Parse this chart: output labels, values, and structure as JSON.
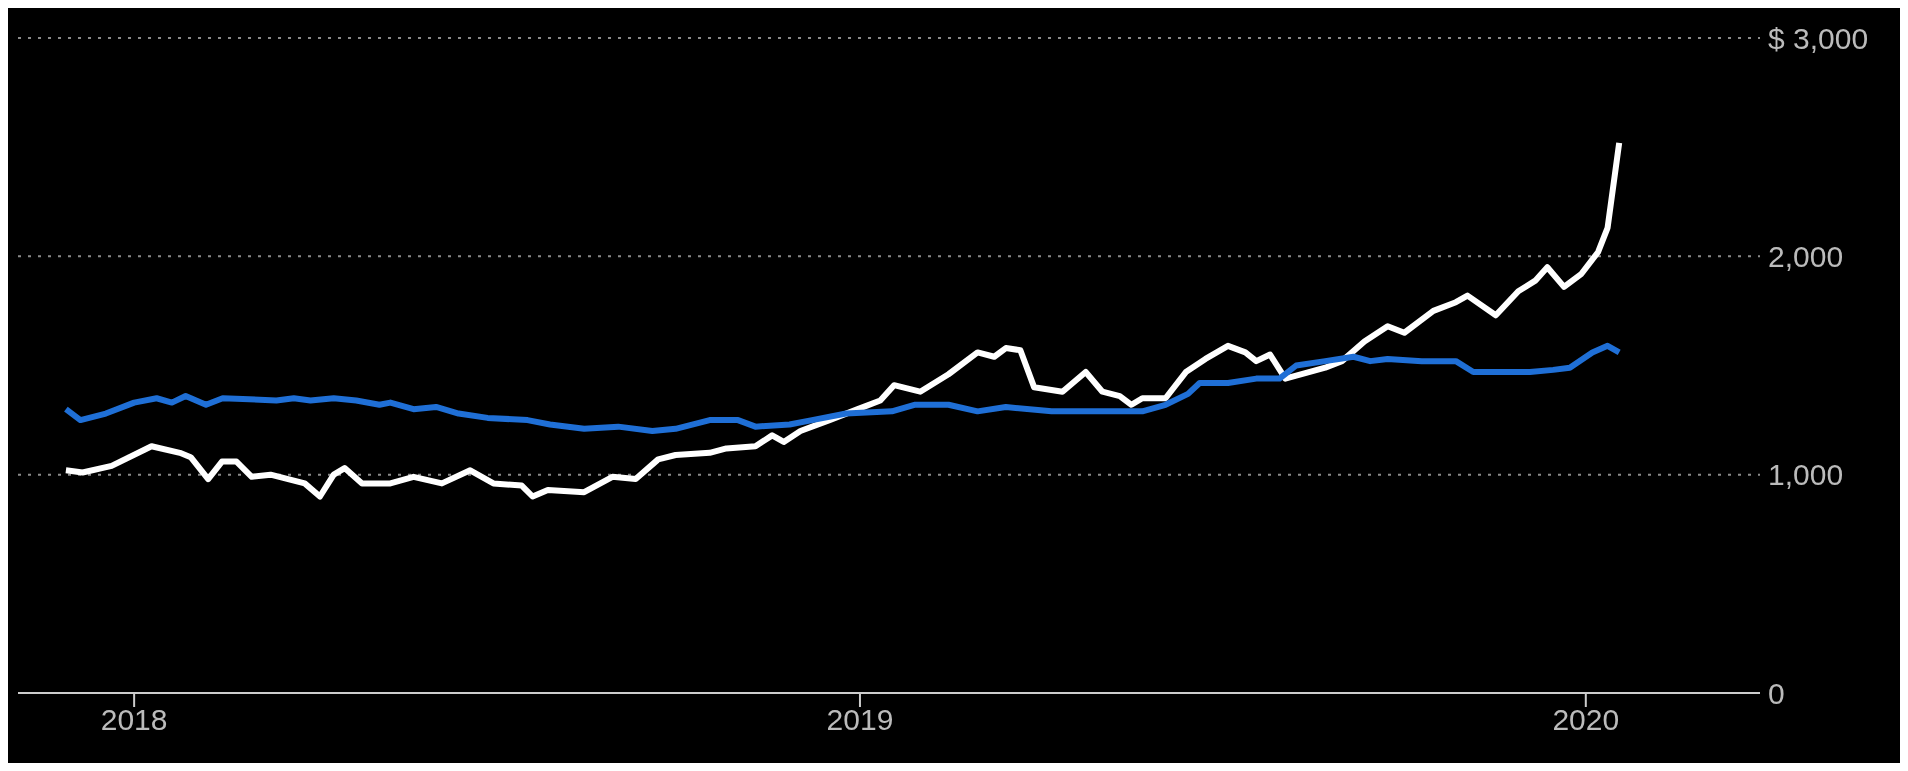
{
  "chart_data": {
    "type": "line",
    "series": [
      {
        "color": "#ffffff",
        "x": [
          2017.906,
          2017.929,
          2017.969,
          2018.024,
          2018.063,
          2018.078,
          2018.102,
          2018.121,
          2018.141,
          2018.162,
          2018.188,
          2018.235,
          2018.256,
          2018.275,
          2018.29,
          2018.314,
          2018.353,
          2018.385,
          2018.424,
          2018.463,
          2018.495,
          2018.534,
          2018.549,
          2018.57,
          2018.62,
          2018.659,
          2018.691,
          2018.722,
          2018.746,
          2018.793,
          2018.816,
          2018.856,
          2018.879,
          2018.895,
          2018.918,
          2018.958,
          2018.997,
          2019.028,
          2019.047,
          2019.083,
          2019.122,
          2019.162,
          2019.185,
          2019.201,
          2019.221,
          2019.24,
          2019.279,
          2019.311,
          2019.334,
          2019.358,
          2019.374,
          2019.389,
          2019.421,
          2019.449,
          2019.476,
          2019.507,
          2019.531,
          2019.546,
          2019.565,
          2019.586,
          2019.641,
          2019.664,
          2019.695,
          2019.727,
          2019.75,
          2019.79,
          2019.821,
          2019.837,
          2019.876,
          2019.907,
          2019.931,
          2019.947,
          2019.97,
          2019.994,
          2020.017,
          2020.03,
          2020.046
        ],
        "values": [
          1020,
          1010,
          1040,
          1130,
          1100,
          1080,
          980,
          1060,
          1060,
          990,
          1000,
          960,
          900,
          1000,
          1030,
          960,
          960,
          990,
          960,
          1020,
          960,
          950,
          900,
          930,
          920,
          990,
          980,
          1070,
          1090,
          1100,
          1120,
          1130,
          1180,
          1150,
          1200,
          1250,
          1300,
          1340,
          1410,
          1380,
          1460,
          1560,
          1540,
          1580,
          1570,
          1400,
          1380,
          1470,
          1380,
          1360,
          1320,
          1350,
          1350,
          1470,
          1530,
          1590,
          1560,
          1520,
          1550,
          1440,
          1490,
          1520,
          1610,
          1680,
          1650,
          1750,
          1790,
          1820,
          1730,
          1840,
          1890,
          1950,
          1860,
          1920,
          2020,
          2130,
          2520
        ]
      },
      {
        "color": "#1f6fd6",
        "x": [
          2017.906,
          2017.926,
          2017.961,
          2018.0,
          2018.031,
          2018.052,
          2018.071,
          2018.099,
          2018.122,
          2018.196,
          2018.22,
          2018.243,
          2018.275,
          2018.306,
          2018.338,
          2018.353,
          2018.385,
          2018.416,
          2018.447,
          2018.487,
          2018.542,
          2018.573,
          2018.62,
          2018.667,
          2018.714,
          2018.746,
          2018.793,
          2018.832,
          2018.856,
          2018.903,
          2018.934,
          2018.981,
          2019.044,
          2019.075,
          2019.122,
          2019.162,
          2019.201,
          2019.264,
          2019.327,
          2019.389,
          2019.421,
          2019.452,
          2019.468,
          2019.507,
          2019.546,
          2019.578,
          2019.601,
          2019.641,
          2019.68,
          2019.703,
          2019.727,
          2019.774,
          2019.821,
          2019.845,
          2019.923,
          2019.955,
          2019.978,
          2020.009,
          2020.03,
          2020.046
        ],
        "values": [
          1300,
          1250,
          1280,
          1330,
          1350,
          1330,
          1360,
          1320,
          1350,
          1340,
          1350,
          1340,
          1350,
          1340,
          1320,
          1330,
          1300,
          1310,
          1280,
          1260,
          1250,
          1230,
          1210,
          1220,
          1200,
          1210,
          1250,
          1250,
          1220,
          1230,
          1250,
          1280,
          1290,
          1320,
          1320,
          1290,
          1310,
          1290,
          1290,
          1290,
          1320,
          1370,
          1420,
          1420,
          1440,
          1440,
          1500,
          1520,
          1540,
          1520,
          1530,
          1520,
          1520,
          1470,
          1470,
          1480,
          1490,
          1560,
          1590,
          1560
        ]
      }
    ],
    "xlim": [
      2017.84,
      2020.24
    ],
    "xticks": [
      2018,
      2019,
      2020
    ],
    "ylim": [
      0,
      3000
    ],
    "yticks": [
      0,
      {
        "value": 1000,
        "label": "1,000"
      },
      {
        "value": 2000,
        "label": "2,000"
      },
      {
        "value": 3000,
        "label": "$ 3,000"
      }
    ],
    "grid": "y",
    "legend": false,
    "marker": "none",
    "line_style": "solid"
  }
}
